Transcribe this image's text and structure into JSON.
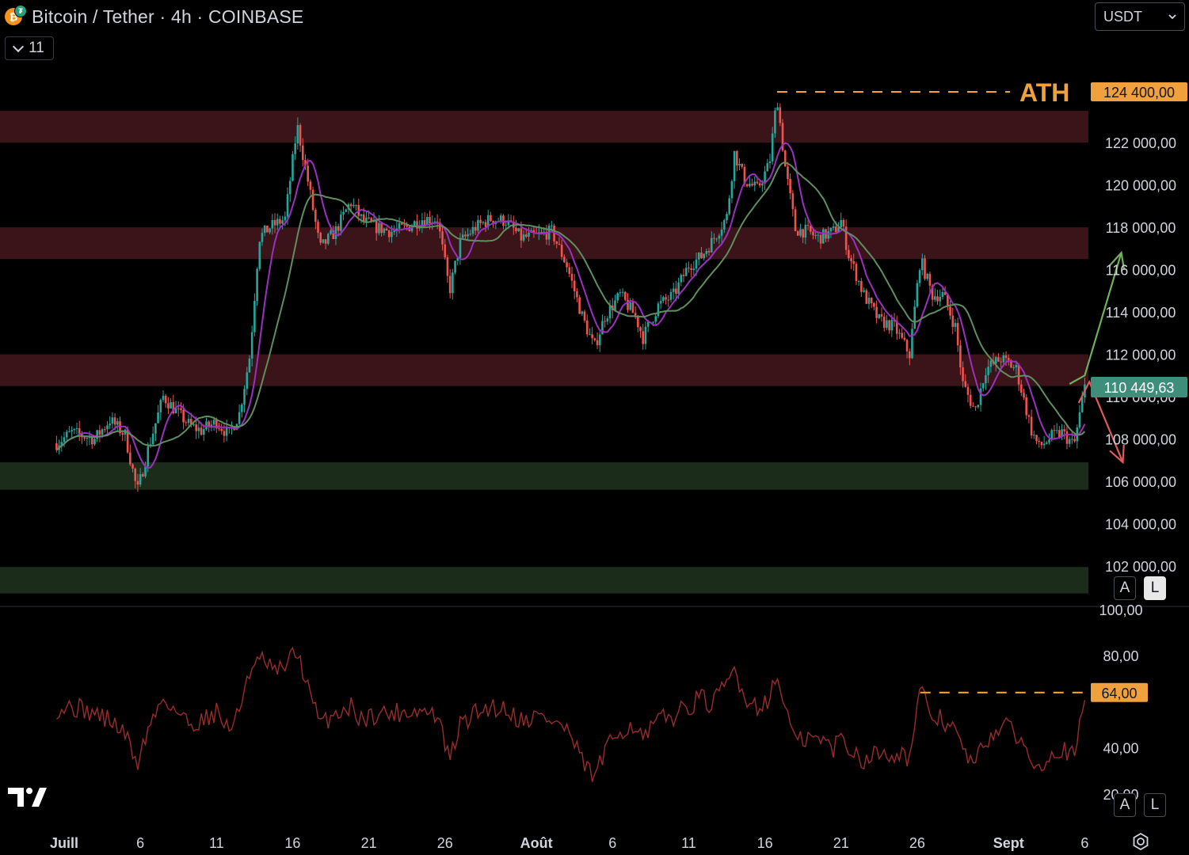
{
  "header": {
    "title": "Bitcoin / Tether · 4h · COINBASE",
    "coin_icon": "bitcoin-icon",
    "collapse_count": "11",
    "quote_currency": "USDT"
  },
  "scale_buttons": {
    "auto": "A",
    "log": "L"
  },
  "chart_data": [
    {
      "type": "candlestick",
      "title": "Bitcoin / Tether · 4h · COINBASE",
      "ylim": [
        100500,
        125000
      ],
      "y_ticks": [
        "102 000,00",
        "104 000,00",
        "106 000,00",
        "108 000,00",
        "110 000,00",
        "112 000,00",
        "114 000,00",
        "116 000,00",
        "118 000,00",
        "120 000,00",
        "122 000,00"
      ],
      "y_tick_values": [
        102000,
        104000,
        106000,
        108000,
        110000,
        112000,
        114000,
        116000,
        118000,
        120000,
        122000
      ],
      "x_ticks": [
        "Juill",
        "6",
        "11",
        "16",
        "21",
        "26",
        "Août",
        "6",
        "11",
        "16",
        "21",
        "26",
        "Sept",
        "6"
      ],
      "x_tick_days": [
        1,
        6,
        11,
        16,
        21,
        26,
        32,
        37,
        42,
        47,
        52,
        57,
        63,
        68
      ],
      "x_bold": [
        "Juill",
        "Août",
        "Sept"
      ],
      "price_path": [
        [
          0.5,
          107800
        ],
        [
          1.5,
          108300
        ],
        [
          3,
          108000
        ],
        [
          4,
          108900
        ],
        [
          5,
          108200
        ],
        [
          5.8,
          105500
        ],
        [
          6.5,
          107500
        ],
        [
          7.5,
          110000
        ],
        [
          8.5,
          109200
        ],
        [
          9.3,
          108600
        ],
        [
          10,
          108400
        ],
        [
          11,
          108800
        ],
        [
          11.8,
          108200
        ],
        [
          12.5,
          109200
        ],
        [
          13.2,
          112000
        ],
        [
          13.8,
          117500
        ],
        [
          14.5,
          118000
        ],
        [
          15.5,
          118400
        ],
        [
          16.3,
          122800
        ],
        [
          17,
          120200
        ],
        [
          17.8,
          117000
        ],
        [
          18.8,
          117800
        ],
        [
          19.8,
          119200
        ],
        [
          20.6,
          118300
        ],
        [
          21.5,
          118000
        ],
        [
          22.5,
          117800
        ],
        [
          23.5,
          118000
        ],
        [
          24.5,
          118400
        ],
        [
          25.5,
          118400
        ],
        [
          26.3,
          115000
        ],
        [
          27,
          117300
        ],
        [
          28,
          118000
        ],
        [
          29,
          118400
        ],
        [
          30,
          118300
        ],
        [
          31,
          117500
        ],
        [
          32,
          117600
        ],
        [
          33,
          117800
        ],
        [
          34,
          116200
        ],
        [
          35,
          113800
        ],
        [
          35.8,
          112300
        ],
        [
          36.5,
          113800
        ],
        [
          37.5,
          114800
        ],
        [
          38.5,
          113800
        ],
        [
          39,
          112800
        ],
        [
          40,
          114300
        ],
        [
          41,
          114800
        ],
        [
          42,
          116200
        ],
        [
          42.8,
          116600
        ],
        [
          43.5,
          117300
        ],
        [
          44.5,
          118500
        ],
        [
          45,
          121500
        ],
        [
          45.7,
          120200
        ],
        [
          46.5,
          119800
        ],
        [
          47.3,
          121000
        ],
        [
          47.8,
          124200
        ],
        [
          48.3,
          121000
        ],
        [
          49,
          117900
        ],
        [
          49.8,
          117800
        ],
        [
          50.5,
          117500
        ],
        [
          51.5,
          117800
        ],
        [
          52,
          118300
        ],
        [
          52.5,
          116700
        ],
        [
          53.5,
          114800
        ],
        [
          54.5,
          113600
        ],
        [
          55.5,
          113300
        ],
        [
          56.5,
          112000
        ],
        [
          57.2,
          116500
        ],
        [
          58,
          114800
        ],
        [
          58.7,
          114800
        ],
        [
          59.5,
          113300
        ],
        [
          60,
          110600
        ],
        [
          60.8,
          109300
        ],
        [
          61.5,
          111300
        ],
        [
          62.5,
          111800
        ],
        [
          63.5,
          111300
        ],
        [
          64.5,
          108400
        ],
        [
          65,
          107600
        ],
        [
          65.8,
          108100
        ],
        [
          66.5,
          108300
        ],
        [
          67.3,
          107700
        ],
        [
          68,
          110450
        ]
      ],
      "current_price": "110 449,63",
      "current_price_value": 110449.63,
      "ath": {
        "label": "ATH",
        "value": 124400,
        "price_label": "124 400,00",
        "from_day": 47.8
      },
      "zones": [
        {
          "type": "resistance",
          "from": 122000,
          "to": 123500,
          "color": "#3a1418"
        },
        {
          "type": "resistance",
          "from": 116500,
          "to": 118000,
          "color": "#3a1418"
        },
        {
          "type": "resistance",
          "from": 110500,
          "to": 112000,
          "color": "#3a1418"
        },
        {
          "type": "support",
          "from": 105600,
          "to": 106900,
          "color": "#1b2c1b"
        },
        {
          "type": "support",
          "from": 100700,
          "to": 101950,
          "color": "#1b2c1b"
        }
      ],
      "projections": [
        {
          "direction": "up",
          "color": "#6fb05a",
          "points": [
            [
              67,
              110600
            ],
            [
              68,
              111000
            ],
            [
              70.4,
              116800
            ]
          ]
        },
        {
          "direction": "down",
          "color": "#e05a5a",
          "points": [
            [
              67.6,
              109700
            ],
            [
              68.3,
              110700
            ],
            [
              70.5,
              106900
            ]
          ]
        }
      ],
      "moving_averages": [
        {
          "color": "#9b30c0",
          "period": 9
        },
        {
          "color": "#5f8f5f",
          "period": 21
        }
      ],
      "up_color": "#26a69a",
      "down_color": "#ef5350"
    },
    {
      "type": "line",
      "indicator": "RSI",
      "ylim": [
        10,
        100
      ],
      "y_ticks": [
        "20,00",
        "40,00",
        "80,00",
        "100,00"
      ],
      "y_tick_values": [
        20,
        40,
        80,
        100
      ],
      "line_color": "#9c2b2b",
      "level": {
        "value": 64,
        "label": "64,00",
        "from_day": 57.2
      },
      "rsi_path": [
        [
          0.5,
          57
        ],
        [
          1.5,
          58
        ],
        [
          3,
          55
        ],
        [
          4,
          52
        ],
        [
          5,
          46
        ],
        [
          5.8,
          33
        ],
        [
          6.5,
          48
        ],
        [
          7.5,
          62
        ],
        [
          8.5,
          55
        ],
        [
          9.3,
          50
        ],
        [
          10,
          52
        ],
        [
          11,
          56
        ],
        [
          11.8,
          48
        ],
        [
          12.5,
          55
        ],
        [
          13,
          72
        ],
        [
          14,
          78
        ],
        [
          15,
          72
        ],
        [
          16.3,
          82
        ],
        [
          17,
          66
        ],
        [
          17.8,
          50
        ],
        [
          18.8,
          55
        ],
        [
          19.8,
          58
        ],
        [
          20.6,
          52
        ],
        [
          21.5,
          55
        ],
        [
          22.5,
          55
        ],
        [
          23.5,
          56
        ],
        [
          24.5,
          56
        ],
        [
          25.5,
          54
        ],
        [
          26.3,
          34
        ],
        [
          27,
          50
        ],
        [
          28,
          55
        ],
        [
          29,
          58
        ],
        [
          30,
          57
        ],
        [
          31,
          52
        ],
        [
          32,
          54
        ],
        [
          33,
          52
        ],
        [
          34,
          48
        ],
        [
          35,
          34
        ],
        [
          35.8,
          27
        ],
        [
          36.5,
          38
        ],
        [
          37.5,
          48
        ],
        [
          38.5,
          50
        ],
        [
          39,
          43
        ],
        [
          40,
          52
        ],
        [
          41,
          54
        ],
        [
          42,
          58
        ],
        [
          42.8,
          62
        ],
        [
          43.5,
          58
        ],
        [
          44.5,
          68
        ],
        [
          45,
          74
        ],
        [
          45.7,
          62
        ],
        [
          46.5,
          58
        ],
        [
          47.3,
          62
        ],
        [
          47.8,
          70
        ],
        [
          48.3,
          60
        ],
        [
          49,
          42
        ],
        [
          49.8,
          44
        ],
        [
          50.5,
          44
        ],
        [
          51.5,
          40
        ],
        [
          52,
          45
        ],
        [
          52.5,
          40
        ],
        [
          53.5,
          35
        ],
        [
          54.5,
          38
        ],
        [
          55.5,
          38
        ],
        [
          56.5,
          36
        ],
        [
          57.2,
          64
        ],
        [
          58,
          54
        ],
        [
          58.7,
          52
        ],
        [
          59.5,
          48
        ],
        [
          60,
          38
        ],
        [
          60.8,
          33
        ],
        [
          61.5,
          43
        ],
        [
          62.5,
          50
        ],
        [
          63.5,
          46
        ],
        [
          64.5,
          35
        ],
        [
          65,
          33
        ],
        [
          65.8,
          38
        ],
        [
          66.5,
          40
        ],
        [
          67.3,
          36
        ],
        [
          68,
          59
        ]
      ]
    }
  ]
}
